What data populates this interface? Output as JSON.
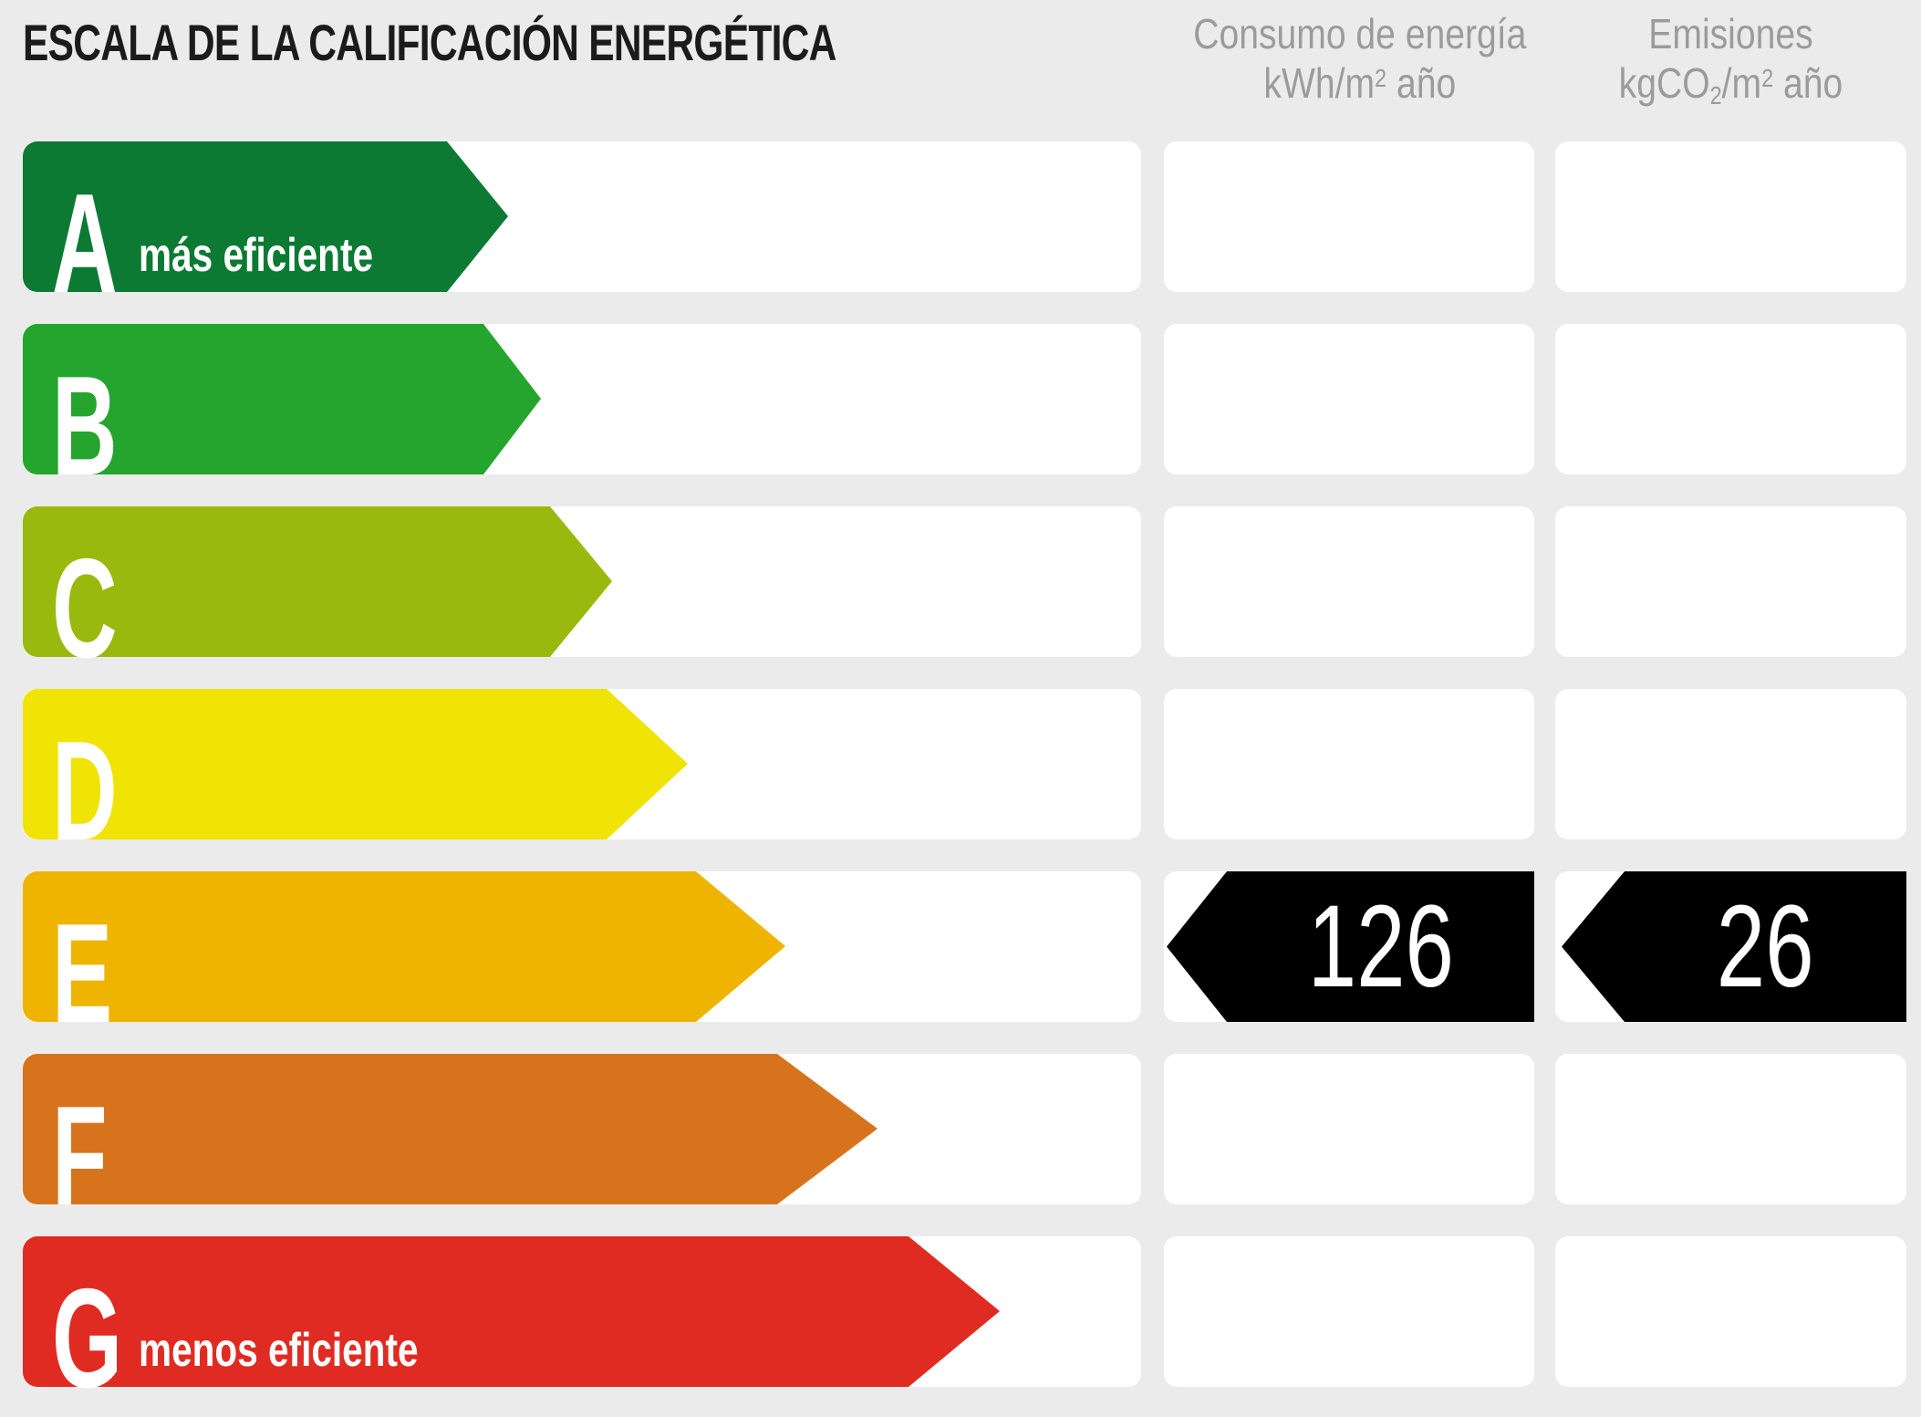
{
  "title": "ESCALA DE LA CALIFICACIÓN ENERGÉTICA",
  "columns": [
    {
      "id": "consumo",
      "title": "Consumo de energía",
      "unit": {
        "prefix": "kWh/m",
        "sup": "2",
        "suffix": " año"
      }
    },
    {
      "id": "emisiones",
      "title": "Emisiones",
      "unit": {
        "prefix": "kgCO",
        "sub": "2",
        "mid": "/m",
        "sup": "2",
        "suffix": " año"
      }
    }
  ],
  "scale": {
    "rows": [
      {
        "grade": "A",
        "note": "más eficiente",
        "color": "#0c7a33",
        "body_width": 465,
        "tip_width": 67
      },
      {
        "grade": "B",
        "note": "",
        "color": "#25a52d",
        "body_width": 505,
        "tip_width": 63
      },
      {
        "grade": "C",
        "note": "",
        "color": "#9ab90f",
        "body_width": 578,
        "tip_width": 68
      },
      {
        "grade": "D",
        "note": "",
        "color": "#f0e306",
        "body_width": 640,
        "tip_width": 89
      },
      {
        "grade": "E",
        "note": "",
        "color": "#efb400",
        "body_width": 738,
        "tip_width": 98
      },
      {
        "grade": "F",
        "note": "",
        "color": "#d8731d",
        "body_width": 827,
        "tip_width": 110
      },
      {
        "grade": "G",
        "note": "menos eficiente",
        "color": "#e02b22",
        "body_width": 971,
        "tip_width": 100
      }
    ]
  },
  "result": {
    "grade": "E",
    "consumo_value": "126",
    "emisiones_value": "26"
  },
  "colors": {
    "background": "#ebebeb",
    "panel": "#ffffff",
    "value_arrow": "#000000",
    "value_text": "#ffffff",
    "header_text": "#9b9b9b",
    "title_text": "#1b1b1b"
  },
  "chart_data": {
    "type": "bar",
    "title": "ESCALA DE LA CALIFICACIÓN ENERGÉTICA",
    "orientation": "horizontal",
    "categories": [
      "A",
      "B",
      "C",
      "D",
      "E",
      "F",
      "G"
    ],
    "bar_colors": [
      "#0c7a33",
      "#25a52d",
      "#9ab90f",
      "#f0e306",
      "#efb400",
      "#d8731d",
      "#e02b22"
    ],
    "bar_relative_widths": [
      0.47,
      0.51,
      0.58,
      0.64,
      0.74,
      0.83,
      0.97
    ],
    "annotations": [
      "A: más eficiente",
      "G: menos eficiente"
    ],
    "rating": "E",
    "series": [
      {
        "name": "Consumo de energía kWh/m² año",
        "rating": "E",
        "value": 126
      },
      {
        "name": "Emisiones kgCO₂/m² año",
        "rating": "E",
        "value": 26
      }
    ],
    "grid": false,
    "legend_position": "none"
  }
}
